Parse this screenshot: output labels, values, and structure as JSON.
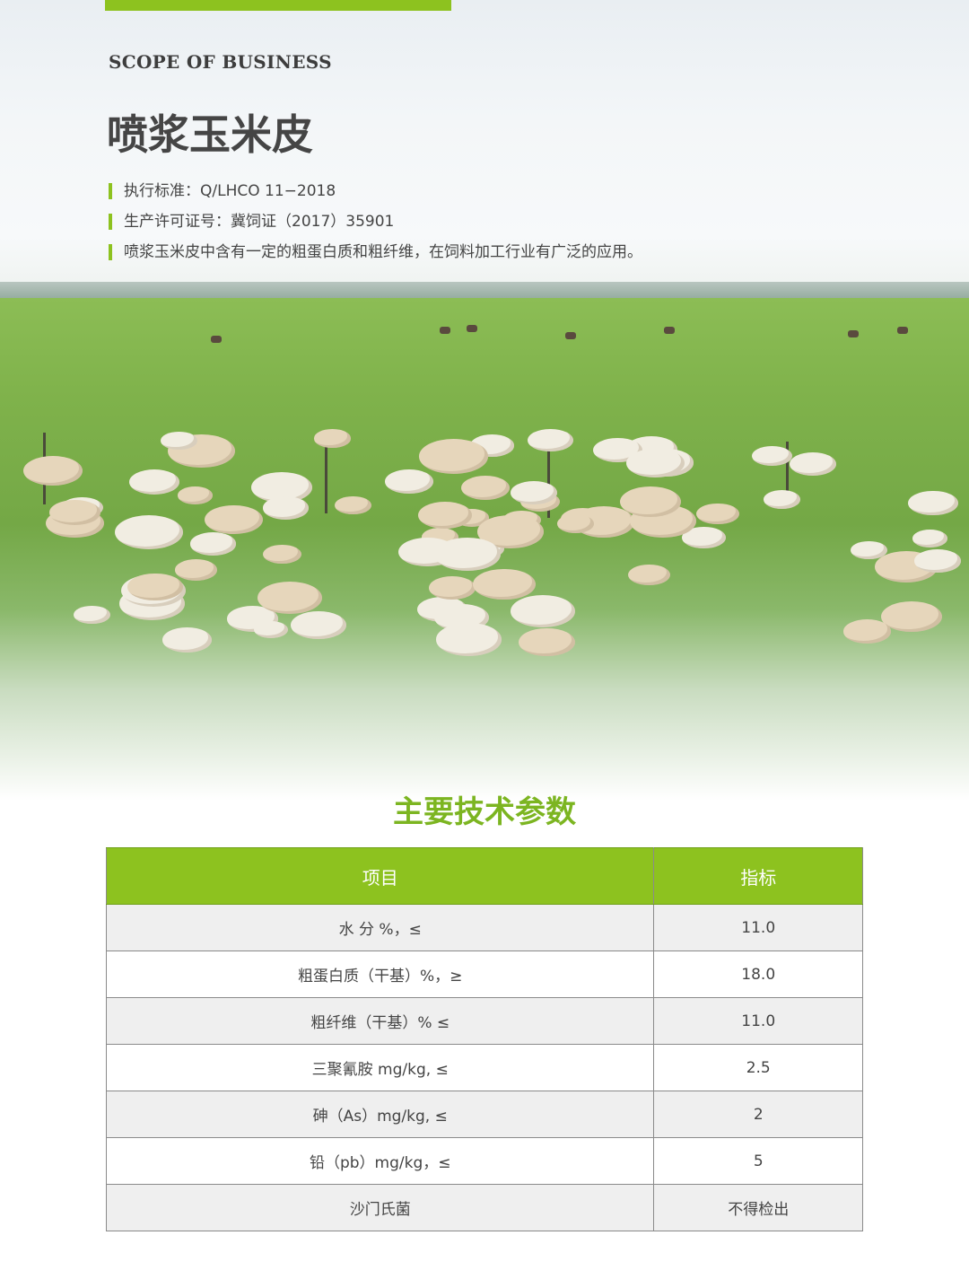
{
  "header": {
    "eyebrow": "SCOPE OF BUSINESS",
    "title": "喷浆玉米皮",
    "info": [
      "执行标准：Q/LHCO 11−2018",
      "生产许可证号：冀饲证（2017）35901",
      "喷浆玉米皮中含有一定的粗蛋白质和粗纤维，在饲料加工行业有广泛的应用。"
    ]
  },
  "section_title": "主要技术参数",
  "table": {
    "headers": [
      "项目",
      "指标"
    ],
    "rows": [
      [
        "水 分 %，≤",
        "11.0"
      ],
      [
        "粗蛋白质（干基）%，≥",
        "18.0"
      ],
      [
        "粗纤维（干基）% ≤",
        "11.0"
      ],
      [
        "三聚氰胺 mg/kg, ≤",
        "2.5"
      ],
      [
        "砷（As）mg/kg, ≤",
        "2"
      ],
      [
        "铅（pb）mg/kg，≤",
        "5"
      ],
      [
        "沙门氏菌",
        "不得检出"
      ]
    ]
  },
  "colors": {
    "accent": "#8dc21f",
    "title_green": "#7cb521",
    "text": "#444444"
  }
}
